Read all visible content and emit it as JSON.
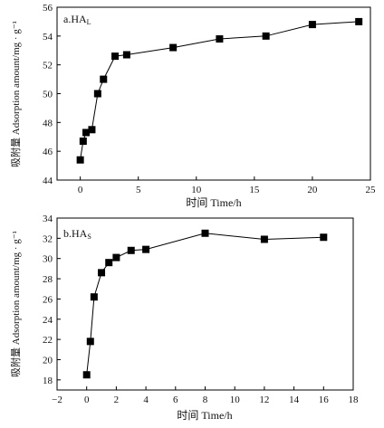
{
  "chart_data": [
    {
      "type": "line",
      "title": "a.HA",
      "title_sub": "L",
      "xlabel": "时间 Time/h",
      "ylabel": "吸附量 Adsorption amount/mg · g⁻¹",
      "xlim": [
        -2,
        25
      ],
      "ylim": [
        44,
        56
      ],
      "xticks": [
        0,
        5,
        10,
        15,
        20,
        25
      ],
      "yticks": [
        44,
        46,
        48,
        50,
        52,
        54,
        56
      ],
      "grid": false,
      "marker": "square",
      "color": "#000000",
      "series": [
        {
          "x": [
            0,
            0.25,
            0.5,
            1,
            1.5,
            2,
            3,
            4,
            8,
            12,
            16,
            20,
            24
          ],
          "y": [
            45.4,
            46.7,
            47.3,
            47.5,
            50.0,
            51.0,
            52.6,
            52.7,
            53.2,
            53.8,
            54.0,
            54.8,
            55.0
          ]
        }
      ]
    },
    {
      "type": "line",
      "title": "b.HA",
      "title_sub": "S",
      "xlabel": "时间 Time/h",
      "ylabel": "吸附量 Adsorption amount/mg · g⁻¹",
      "xlim": [
        -2,
        18
      ],
      "ylim": [
        17,
        34
      ],
      "xticks": [
        -2,
        0,
        2,
        4,
        6,
        8,
        10,
        12,
        14,
        16,
        18
      ],
      "yticks": [
        18,
        20,
        22,
        24,
        26,
        28,
        30,
        32,
        34
      ],
      "grid": false,
      "marker": "square",
      "color": "#000000",
      "series": [
        {
          "x": [
            0,
            0.25,
            0.5,
            1,
            1.5,
            2,
            3,
            4,
            8,
            12,
            16
          ],
          "y": [
            18.5,
            21.8,
            26.2,
            28.6,
            29.6,
            30.1,
            30.8,
            30.9,
            32.5,
            31.9,
            32.1
          ]
        }
      ]
    }
  ]
}
